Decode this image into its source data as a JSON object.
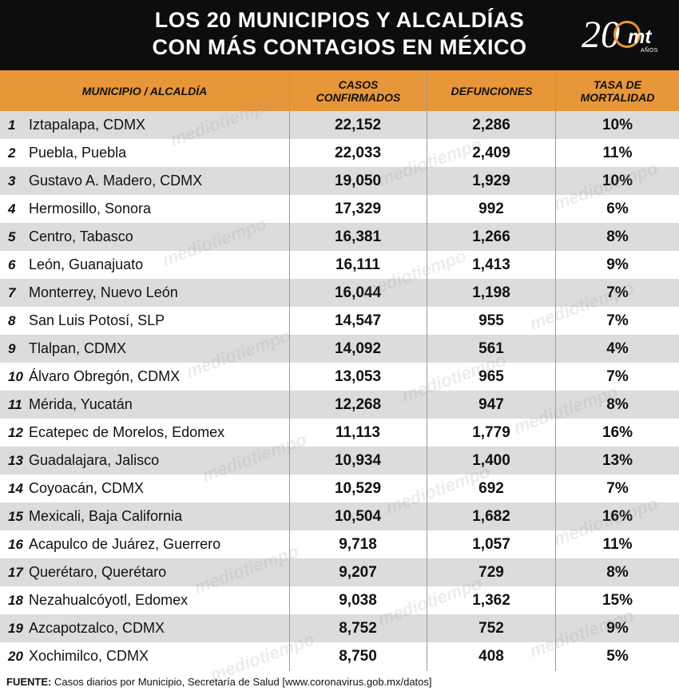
{
  "title_line1": "LOS 20 MUNICIPIOS Y ALCALDÍAS",
  "title_line2": "CON MÁS CONTAGIOS EN MÉXICO",
  "logo": {
    "number": "20",
    "text": "mt",
    "sub": "AÑOS"
  },
  "watermark": "mediotiempo",
  "colors": {
    "header_bg": "#0d0d0d",
    "table_header": "#e8963a",
    "row_alt": "#dcdcdc"
  },
  "footer": {
    "label": "FUENTE:",
    "text": " Casos diarios por Municipio, Secretaría de Salud [www.coronavirus.gob.mx/datos]"
  },
  "chart_data": {
    "type": "table",
    "columns": [
      "MUNICIPIO / ALCALDÍA",
      "CASOS CONFIRMADOS",
      "DEFUNCIONES",
      "TASA DE MORTALIDAD"
    ],
    "rows": [
      {
        "rank": "1",
        "name": "Iztapalapa, CDMX",
        "cases": "22,152",
        "deaths": "2,286",
        "rate": "10%"
      },
      {
        "rank": "2",
        "name": "Puebla, Puebla",
        "cases": "22,033",
        "deaths": "2,409",
        "rate": "11%"
      },
      {
        "rank": "3",
        "name": "Gustavo A. Madero, CDMX",
        "cases": "19,050",
        "deaths": "1,929",
        "rate": "10%"
      },
      {
        "rank": "4",
        "name": "Hermosillo, Sonora",
        "cases": "17,329",
        "deaths": "992",
        "rate": "6%"
      },
      {
        "rank": "5",
        "name": "Centro, Tabasco",
        "cases": "16,381",
        "deaths": "1,266",
        "rate": "8%"
      },
      {
        "rank": "6",
        "name": "León, Guanajuato",
        "cases": "16,111",
        "deaths": "1,413",
        "rate": "9%"
      },
      {
        "rank": "7",
        "name": "Monterrey, Nuevo León",
        "cases": "16,044",
        "deaths": "1,198",
        "rate": "7%"
      },
      {
        "rank": "8",
        "name": "San Luis Potosí, SLP",
        "cases": "14,547",
        "deaths": "955",
        "rate": "7%"
      },
      {
        "rank": "9",
        "name": "Tlalpan, CDMX",
        "cases": "14,092",
        "deaths": "561",
        "rate": "4%"
      },
      {
        "rank": "10",
        "name": "Álvaro Obregón, CDMX",
        "cases": "13,053",
        "deaths": "965",
        "rate": "7%"
      },
      {
        "rank": "11",
        "name": "Mérida, Yucatán",
        "cases": "12,268",
        "deaths": "947",
        "rate": "8%"
      },
      {
        "rank": "12",
        "name": "Ecatepec de Morelos, Edomex",
        "cases": "11,113",
        "deaths": "1,779",
        "rate": "16%"
      },
      {
        "rank": "13",
        "name": "Guadalajara, Jalisco",
        "cases": "10,934",
        "deaths": "1,400",
        "rate": "13%"
      },
      {
        "rank": "14",
        "name": "Coyoacán, CDMX",
        "cases": "10,529",
        "deaths": "692",
        "rate": "7%"
      },
      {
        "rank": "15",
        "name": "Mexicali, Baja California",
        "cases": "10,504",
        "deaths": "1,682",
        "rate": "16%"
      },
      {
        "rank": "16",
        "name": "Acapulco de Juárez, Guerrero",
        "cases": "9,718",
        "deaths": "1,057",
        "rate": "11%"
      },
      {
        "rank": "17",
        "name": "Querétaro, Querétaro",
        "cases": "9,207",
        "deaths": "729",
        "rate": "8%"
      },
      {
        "rank": "18",
        "name": "Nezahualcóyotl, Edomex",
        "cases": "9,038",
        "deaths": "1,362",
        "rate": "15%"
      },
      {
        "rank": "19",
        "name": "Azcapotzalco, CDMX",
        "cases": "8,752",
        "deaths": "752",
        "rate": "9%"
      },
      {
        "rank": "20",
        "name": "Xochimilco, CDMX",
        "cases": "8,750",
        "deaths": "408",
        "rate": "5%"
      }
    ]
  }
}
